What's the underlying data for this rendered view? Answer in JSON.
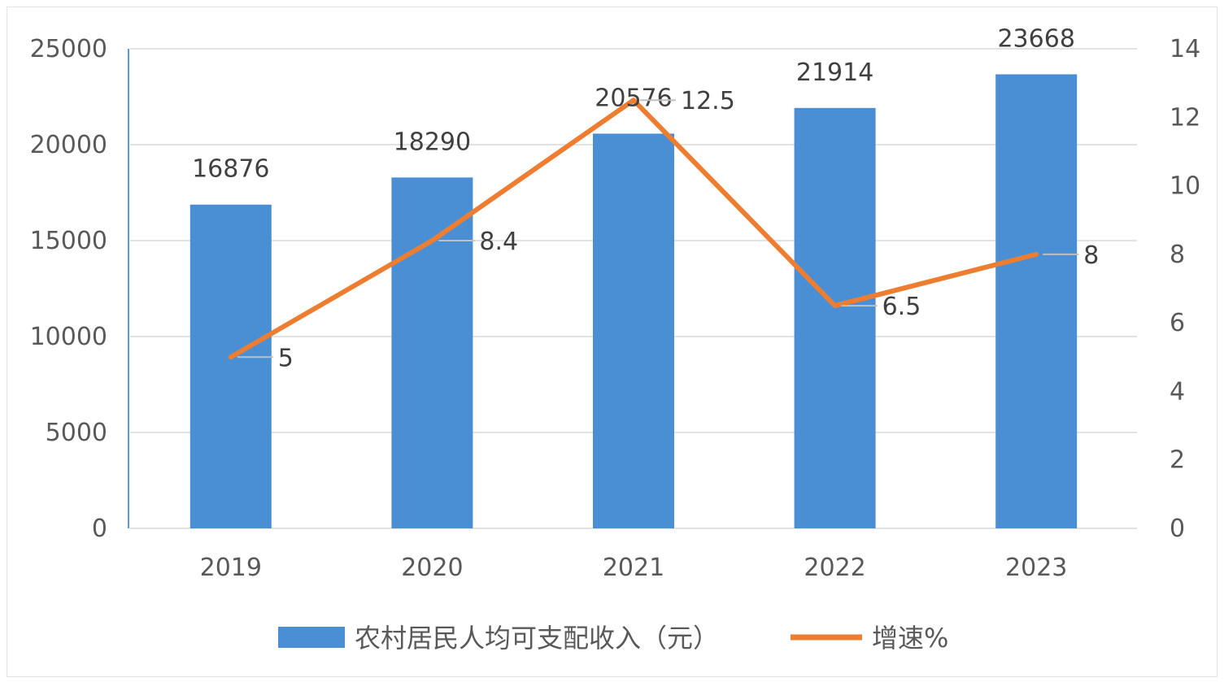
{
  "chart_data": {
    "type": "bar+line",
    "categories": [
      "2019",
      "2020",
      "2021",
      "2022",
      "2023"
    ],
    "series": [
      {
        "name": "农村居民人均可支配收入（元）",
        "kind": "bar",
        "axis": "left",
        "values": [
          16876,
          18290,
          20576,
          21914,
          23668
        ]
      },
      {
        "name": "增速%",
        "kind": "line",
        "axis": "right",
        "values": [
          5,
          8.4,
          12.5,
          6.5,
          8
        ]
      }
    ],
    "y_left": {
      "min": 0,
      "max": 25000,
      "ticks": [
        0,
        5000,
        10000,
        15000,
        20000,
        25000
      ]
    },
    "y_right": {
      "min": 0,
      "max": 14,
      "ticks": [
        0,
        2,
        4,
        6,
        8,
        10,
        12,
        14
      ]
    },
    "grid": true,
    "legend": "bottom",
    "colors": {
      "bar": "#4a8fd4",
      "line": "#ed7d31"
    }
  }
}
